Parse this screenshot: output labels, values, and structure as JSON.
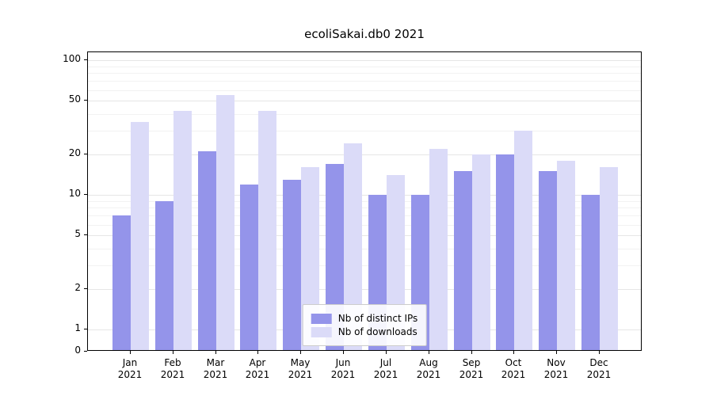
{
  "title": "ecoliSakai.db0 2021",
  "colors": {
    "distinct_ips": "#9494ea",
    "downloads": "#dbdbf8",
    "grid_major": "#e6e6e6",
    "grid_minor": "#f2f2f2",
    "axis": "#000000",
    "background": "#ffffff"
  },
  "chart_data": {
    "type": "bar",
    "title": "ecoliSakai.db0 2021",
    "x_months": [
      "Jan",
      "Feb",
      "Mar",
      "Apr",
      "May",
      "Jun",
      "Jul",
      "Aug",
      "Sep",
      "Oct",
      "Nov",
      "Dec"
    ],
    "x_year": "2021",
    "series": [
      {
        "name": "Nb of distinct IPs",
        "color_key": "distinct_ips",
        "values": [
          7,
          9,
          21,
          12,
          13,
          17,
          10,
          10,
          15,
          20,
          15,
          10
        ]
      },
      {
        "name": "Nb of downloads",
        "color_key": "downloads",
        "values": [
          35,
          42,
          55,
          42,
          16,
          24,
          14,
          22,
          20,
          30,
          18,
          16
        ]
      }
    ],
    "y_scale": "symlog",
    "y_ticks": [
      0,
      1,
      2,
      5,
      10,
      20,
      50,
      100
    ],
    "y_minor_ticks": [
      3,
      4,
      6,
      7,
      8,
      9,
      30,
      40,
      60,
      70,
      80,
      90
    ],
    "ylim": [
      0,
      100
    ],
    "grid": true,
    "legend_position": "lower center"
  }
}
